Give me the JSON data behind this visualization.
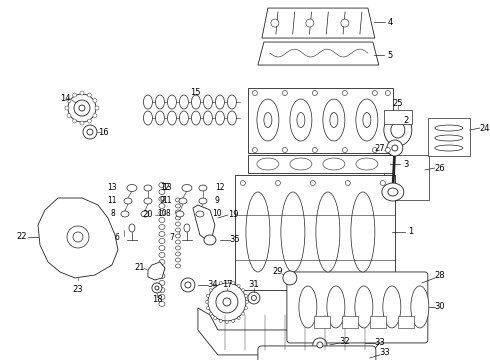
{
  "bg_color": "#ffffff",
  "line_color": "#222222",
  "lw": 0.6,
  "label_fs": 6.0,
  "label_color": "#000000"
}
